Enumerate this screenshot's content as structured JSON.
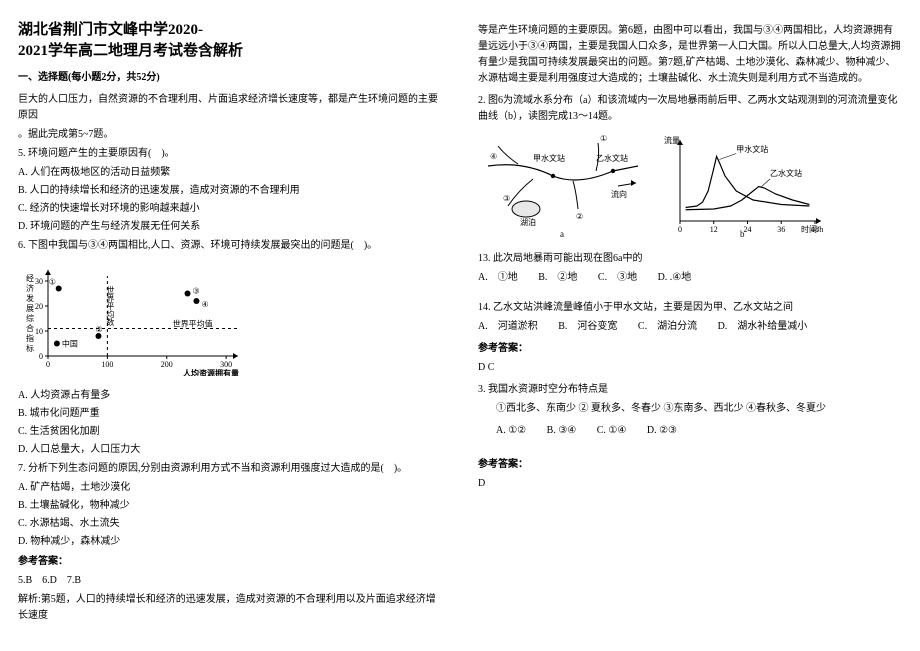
{
  "title_line1": "湖北省荆门市文峰中学2020-",
  "title_line2": "2021学年高二地理月考试卷含解析",
  "section1": "一、选择题(每小题2分，共52分)",
  "p1": "巨大的人口压力，自然资源的不合理利用、片面追求经济增长速度等，都是产生环境问题的主要原因",
  "p2_intro": "。据此完成第5~7题。",
  "q5": "5. 环境问题产生的主要原因有(　)。",
  "q5_o": [
    "A. 人们在两极地区的活动日益频繁",
    "B. 人口的持续增长和经济的迅速发展，造成对资源的不合理利用",
    "C. 经济的快速增长对环境的影响越来越小",
    "D. 环境问题的产生与经济发展无任何关系"
  ],
  "q6": "6. 下图中我国与③④两国相比,人口、资源、环境可持续发展最突出的问题是(　)。",
  "chart": {
    "labels": {
      "title": "",
      "ylab": "经济发展综合指标",
      "xlab": "人均资源拥有量",
      "wavg_line_v": "世界平均数",
      "wavg_line_h": "世界平均值",
      "china": "中国"
    },
    "points": {
      "china": [
        15,
        5
      ],
      "p1": [
        18,
        27
      ],
      "p3": [
        235,
        25
      ],
      "p4": [
        250,
        22
      ],
      "p2": [
        85,
        8
      ]
    },
    "xticks": [
      0,
      100,
      200,
      300
    ],
    "yticks": [
      0,
      10,
      20,
      30
    ],
    "xlim": [
      0,
      320
    ],
    "ylim": [
      0,
      32
    ],
    "font_size": 8,
    "axis_color": "#000000",
    "bg": "#ffffff",
    "dash": "3,3"
  },
  "q6_o": [
    "A. 人均资源占有量多",
    "B. 城市化问题严重",
    "C. 生活贫困化加剧",
    "D. 人口总量大，人口压力大"
  ],
  "q7": "7. 分析下列生态问题的原因,分别由资源利用方式不当和资源利用强度过大造成的是(　)。",
  "q7_o": [
    "A. 矿产枯竭，土地沙漠化",
    "B. 土壤盐碱化，物种减少",
    "C. 水源枯竭、水土流失",
    "D. 物种减少，森林减少"
  ],
  "ans_head": "参考答案：",
  "ans_567": "5.B　6.D　7.B",
  "analysis5": "解析:第5题，人口的持续增长和经济的迅速发展，造成对资源的不合理利用以及片面追求经济增长速度",
  "col2_top": "等是产生环境问题的主要原因。第6题，由图中可以看出，我国与③④两国相比，人均资源拥有量远远小于③④两国，主要是我国人口众多，是世界第一人口大国。所以人口总量大,人均资源拥有量少是我国可持续发展最突出的问题。第7题,矿产枯竭、土地沙漠化、森林减少、物种减少、水源枯竭主要是利用强度过大造成的；土壤盐碱化、水土流失则是利用方式不当造成的。",
  "q2_intro": "2. 图6为流域水系分布（a）和该流域内一次局地暴雨前后甲、乙两水文站观测到的河流流量变化曲线（b），读图完成13～14题。",
  "figA": {
    "labels": {
      "jia": "甲水文站",
      "yi": "乙水文站",
      "liu": "流向",
      "hu": "湖泊",
      "p1": "①",
      "p2": "②",
      "p3": "③",
      "p4": "④",
      "a": "a"
    },
    "colors": {
      "water": "#e8e8e8",
      "line": "#000000",
      "bg": "#ffffff"
    }
  },
  "figB": {
    "labels": {
      "ylab": "流量",
      "xlab": "时间/h",
      "jia": "甲水文站",
      "yi": "乙水文站",
      "b": "b"
    },
    "xticks": [
      0,
      12,
      24,
      36,
      48
    ],
    "ylim": [
      0,
      100
    ],
    "jia_series": [
      [
        2,
        18
      ],
      [
        6,
        20
      ],
      [
        8,
        25
      ],
      [
        10,
        40
      ],
      [
        12,
        70
      ],
      [
        13,
        86
      ],
      [
        14,
        78
      ],
      [
        16,
        60
      ],
      [
        20,
        40
      ],
      [
        26,
        28
      ],
      [
        36,
        22
      ],
      [
        46,
        20
      ]
    ],
    "yi_series": [
      [
        2,
        15
      ],
      [
        12,
        16
      ],
      [
        18,
        20
      ],
      [
        22,
        28
      ],
      [
        26,
        40
      ],
      [
        28,
        46
      ],
      [
        30,
        44
      ],
      [
        34,
        36
      ],
      [
        40,
        28
      ],
      [
        46,
        22
      ]
    ],
    "colors": {
      "axis": "#000000",
      "line": "#000000",
      "bg": "#ffffff"
    }
  },
  "q13": "13. 此次局地暴雨可能出现在图6a中的",
  "q13_o": [
    "A.　①地",
    "B.　②地",
    "C.　③地",
    "D. .④地"
  ],
  "q14": "14. 乙水文站洪峰流量峰值小于甲水文站，主要是因为甲、乙水文站之间",
  "q14_o": [
    "A.　河道淤积",
    "B.　河谷变宽",
    "C.　湖泊分流",
    "D.　湖水补给量减小"
  ],
  "ans2": "D C",
  "q3": "3. 我国水资源时空分布特点是",
  "q3_choices": "①西北多、东南少 ② 夏秋多、冬春少 ③东南多、西北少 ④春秋多、冬夏少",
  "q3_o": [
    "A. ①②",
    "B. ③④",
    "C. ①④",
    "D. ②③"
  ],
  "ans3": "D"
}
